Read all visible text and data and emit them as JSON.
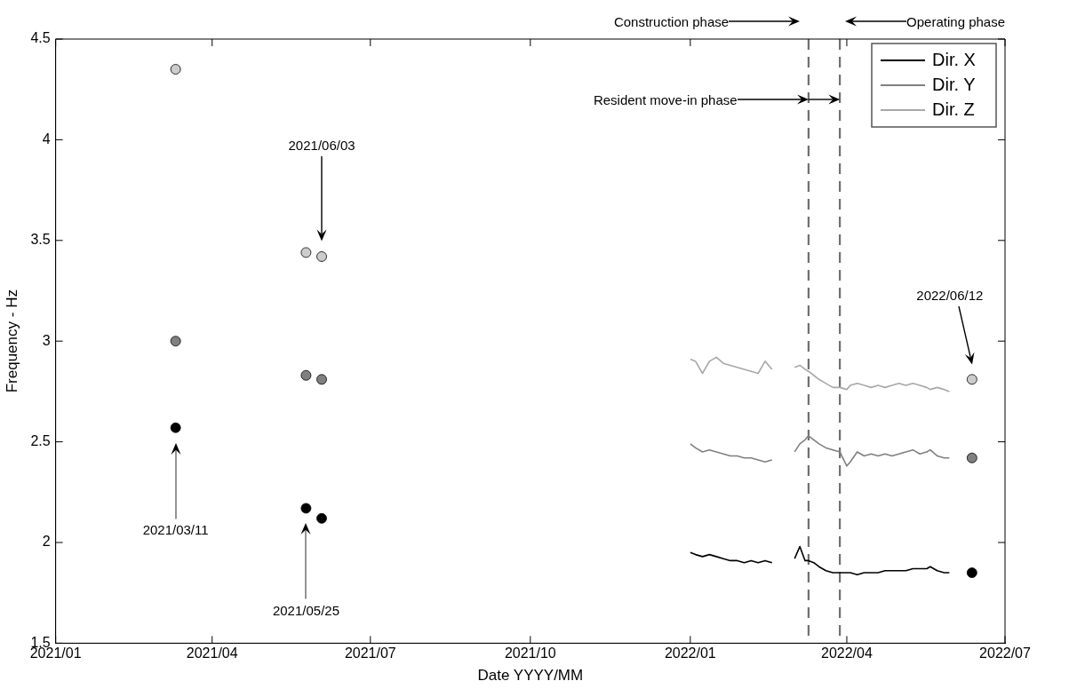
{
  "chart_data": {
    "type": "line",
    "xlabel": "Date YYYY/MM",
    "ylabel": "Frequency - Hz",
    "xlim": [
      "2021-01",
      "2022-07"
    ],
    "xticks": [
      {
        "value": "2021-01",
        "label": "2021/01"
      },
      {
        "value": "2021-04",
        "label": "2021/04"
      },
      {
        "value": "2021-07",
        "label": "2021/07"
      },
      {
        "value": "2021-10",
        "label": "2021/10"
      },
      {
        "value": "2022-01",
        "label": "2022/01"
      },
      {
        "value": "2022-04",
        "label": "2022/04"
      },
      {
        "value": "2022-07",
        "label": "2022/07"
      }
    ],
    "ylim": [
      1.5,
      4.5
    ],
    "yticks": [
      1.5,
      2,
      2.5,
      3,
      3.5,
      4,
      4.5
    ],
    "grid": false,
    "legend": "top right",
    "line_style": "solid",
    "series": [
      {
        "name": "Dir. X",
        "color": "#000000",
        "x": [
          "2022-01-01",
          "2022-01-04",
          "2022-01-08",
          "2022-01-12",
          "2022-01-16",
          "2022-01-20",
          "2022-01-24",
          "2022-01-28",
          "2022-02-01",
          "2022-02-05",
          "2022-02-09",
          "2022-02-13",
          "2022-02-17",
          "2022-02-24",
          "2022-03-02",
          "2022-03-05",
          "2022-03-08",
          "2022-03-10",
          "2022-03-13",
          "2022-03-16",
          "2022-03-20",
          "2022-03-24",
          "2022-03-28",
          "2022-04-01",
          "2022-04-03",
          "2022-04-07",
          "2022-04-11",
          "2022-04-15",
          "2022-04-19",
          "2022-04-23",
          "2022-04-27",
          "2022-05-01",
          "2022-05-05",
          "2022-05-09",
          "2022-05-13",
          "2022-05-17",
          "2022-05-19",
          "2022-05-23",
          "2022-05-27",
          "2022-05-30"
        ],
        "values": [
          1.95,
          1.94,
          1.93,
          1.94,
          1.93,
          1.92,
          1.91,
          1.91,
          1.9,
          1.91,
          1.9,
          1.91,
          1.9,
          null,
          1.92,
          1.98,
          1.91,
          1.91,
          1.9,
          1.88,
          1.86,
          1.85,
          1.85,
          1.85,
          1.85,
          1.84,
          1.85,
          1.85,
          1.85,
          1.86,
          1.86,
          1.86,
          1.86,
          1.87,
          1.87,
          1.87,
          1.88,
          1.86,
          1.85,
          1.85
        ]
      },
      {
        "name": "Dir. Y",
        "color": "#808080",
        "x": [
          "2022-01-01",
          "2022-01-04",
          "2022-01-08",
          "2022-01-12",
          "2022-01-16",
          "2022-01-20",
          "2022-01-24",
          "2022-01-28",
          "2022-02-01",
          "2022-02-05",
          "2022-02-09",
          "2022-02-13",
          "2022-02-17",
          "2022-02-24",
          "2022-03-02",
          "2022-03-05",
          "2022-03-08",
          "2022-03-10",
          "2022-03-13",
          "2022-03-16",
          "2022-03-20",
          "2022-03-24",
          "2022-03-28",
          "2022-04-01",
          "2022-04-03",
          "2022-04-07",
          "2022-04-11",
          "2022-04-15",
          "2022-04-19",
          "2022-04-23",
          "2022-04-27",
          "2022-05-01",
          "2022-05-05",
          "2022-05-09",
          "2022-05-13",
          "2022-05-17",
          "2022-05-19",
          "2022-05-23",
          "2022-05-27",
          "2022-05-30"
        ],
        "values": [
          2.49,
          2.47,
          2.45,
          2.46,
          2.45,
          2.44,
          2.43,
          2.43,
          2.42,
          2.42,
          2.41,
          2.4,
          2.41,
          null,
          2.45,
          2.49,
          2.51,
          2.53,
          2.51,
          2.49,
          2.47,
          2.46,
          2.45,
          2.38,
          2.4,
          2.45,
          2.43,
          2.44,
          2.43,
          2.44,
          2.43,
          2.44,
          2.45,
          2.46,
          2.44,
          2.45,
          2.46,
          2.43,
          2.42,
          2.42
        ]
      },
      {
        "name": "Dir. Z",
        "color": "#a8a8a8",
        "x": [
          "2022-01-01",
          "2022-01-04",
          "2022-01-08",
          "2022-01-12",
          "2022-01-16",
          "2022-01-20",
          "2022-01-24",
          "2022-01-28",
          "2022-02-01",
          "2022-02-05",
          "2022-02-09",
          "2022-02-13",
          "2022-02-17",
          "2022-02-24",
          "2022-03-02",
          "2022-03-05",
          "2022-03-08",
          "2022-03-10",
          "2022-03-13",
          "2022-03-16",
          "2022-03-20",
          "2022-03-24",
          "2022-03-28",
          "2022-04-01",
          "2022-04-03",
          "2022-04-07",
          "2022-04-11",
          "2022-04-15",
          "2022-04-19",
          "2022-04-23",
          "2022-04-27",
          "2022-05-01",
          "2022-05-05",
          "2022-05-09",
          "2022-05-13",
          "2022-05-17",
          "2022-05-19",
          "2022-05-23",
          "2022-05-27",
          "2022-05-30"
        ],
        "values": [
          2.91,
          2.9,
          2.84,
          2.9,
          2.92,
          2.89,
          2.88,
          2.87,
          2.86,
          2.85,
          2.84,
          2.9,
          2.86,
          null,
          2.87,
          2.88,
          2.86,
          2.85,
          2.83,
          2.81,
          2.79,
          2.77,
          2.77,
          2.76,
          2.78,
          2.79,
          2.78,
          2.77,
          2.78,
          2.77,
          2.78,
          2.79,
          2.78,
          2.79,
          2.78,
          2.77,
          2.76,
          2.77,
          2.76,
          2.75
        ]
      },
      {
        "type": "scatter",
        "marker": "circle",
        "color": "#000000",
        "x": [
          "2021-03-11",
          "2021-05-25",
          "2021-06-03",
          "2022-06-12"
        ],
        "values": [
          2.57,
          2.17,
          2.12,
          1.85
        ]
      },
      {
        "type": "scatter",
        "marker": "circle",
        "color": "#808080",
        "x": [
          "2021-03-11",
          "2021-05-25",
          "2021-06-03",
          "2022-06-12"
        ],
        "values": [
          3.0,
          2.83,
          2.81,
          2.42
        ]
      },
      {
        "type": "scatter",
        "marker": "circle",
        "color": "#cccccc",
        "x": [
          "2021-03-11",
          "2021-05-25",
          "2021-06-03",
          "2022-06-12"
        ],
        "values": [
          4.35,
          3.44,
          3.42,
          2.81
        ]
      }
    ],
    "ref_lines": [
      {
        "axis": "x",
        "value": "2022-03-10",
        "color": "#707070",
        "line_style": "dashed"
      },
      {
        "axis": "x",
        "value": "2022-03-28",
        "color": "#707070",
        "line_style": "dashed"
      }
    ],
    "annotations": [
      "2021/03/11",
      "2021/05/25",
      "2021/06/03",
      "2022/06/12",
      "Construction phase",
      "Operating phase",
      "Resident move-in phase"
    ]
  }
}
